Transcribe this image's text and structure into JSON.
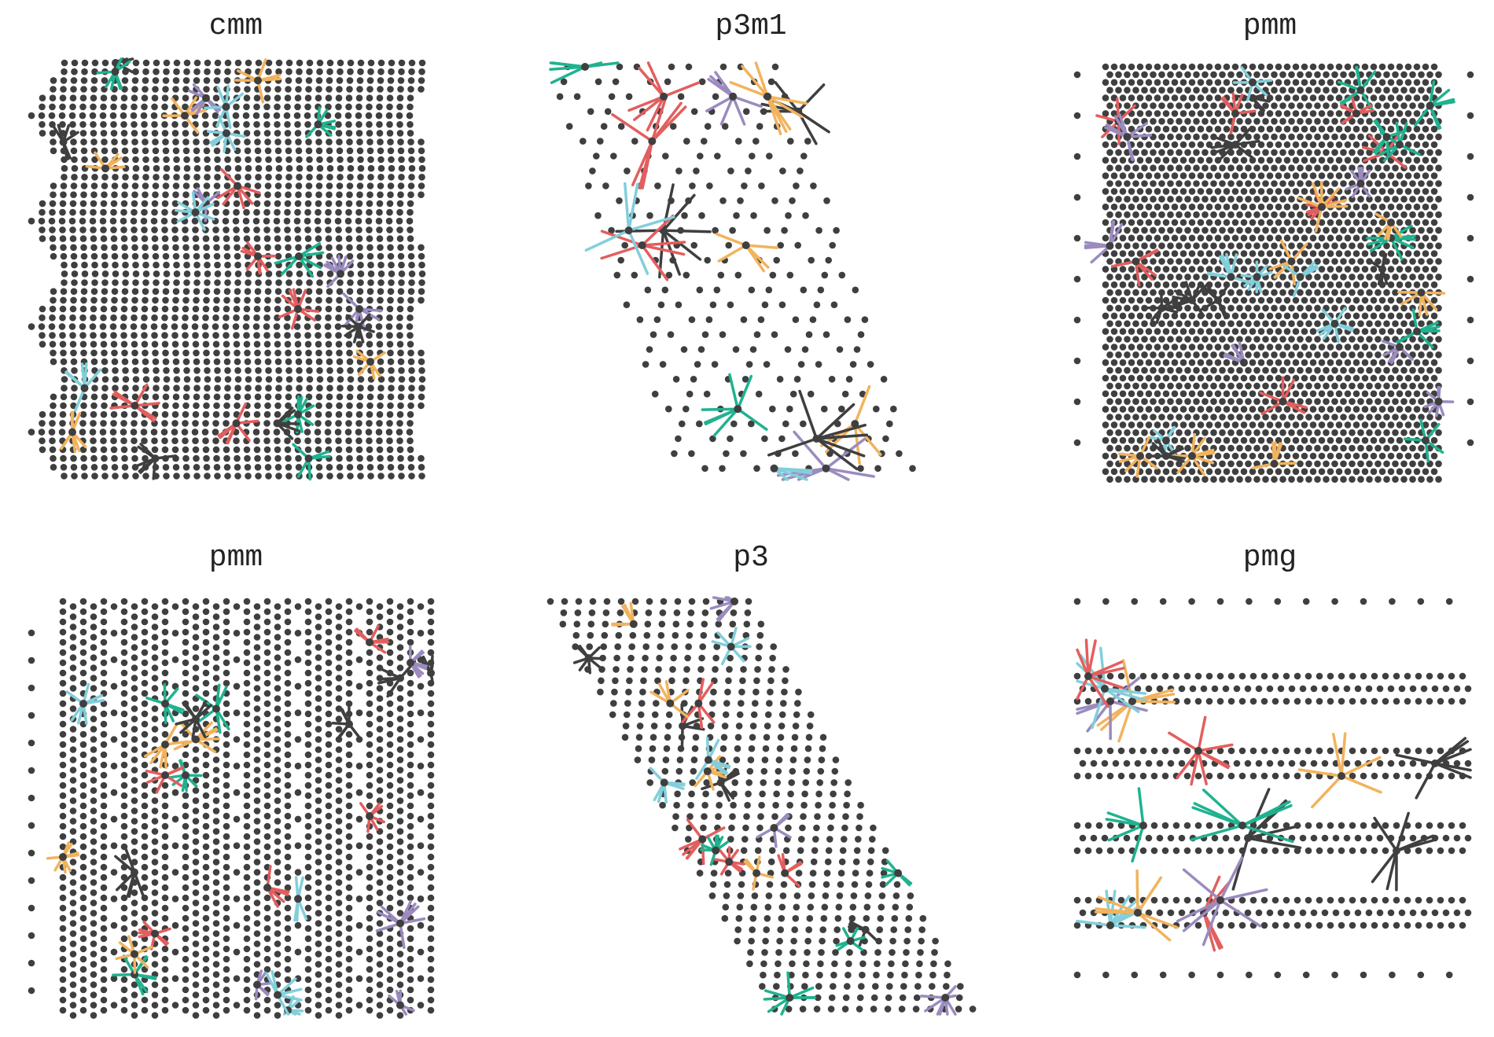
{
  "figure": {
    "colors": {
      "dot": "#3f3f3f",
      "star": [
        "#3f3f3f",
        "#e35e5e",
        "#f2b35e",
        "#20b28f",
        "#9b8bbf",
        "#82cfdb"
      ]
    },
    "panels": [
      {
        "title": "cmm",
        "lattice": "hex-wavy",
        "dot_density": "dense",
        "num_stars": 28
      },
      {
        "title": "p3m1",
        "lattice": "triangular-sparse-slanted",
        "dot_density": "sparse",
        "num_stars": 15
      },
      {
        "title": "pmm",
        "lattice": "rectangular-dense",
        "dot_density": "very-dense",
        "num_stars": 40
      },
      {
        "title": "pmm",
        "lattice": "rectangular-columns",
        "dot_density": "dense",
        "num_stars": 26
      },
      {
        "title": "p3",
        "lattice": "triangular-slanted",
        "dot_density": "medium",
        "num_stars": 22
      },
      {
        "title": "pmg",
        "lattice": "horizontal-bands",
        "dot_density": "medium",
        "num_stars": 15
      }
    ]
  }
}
